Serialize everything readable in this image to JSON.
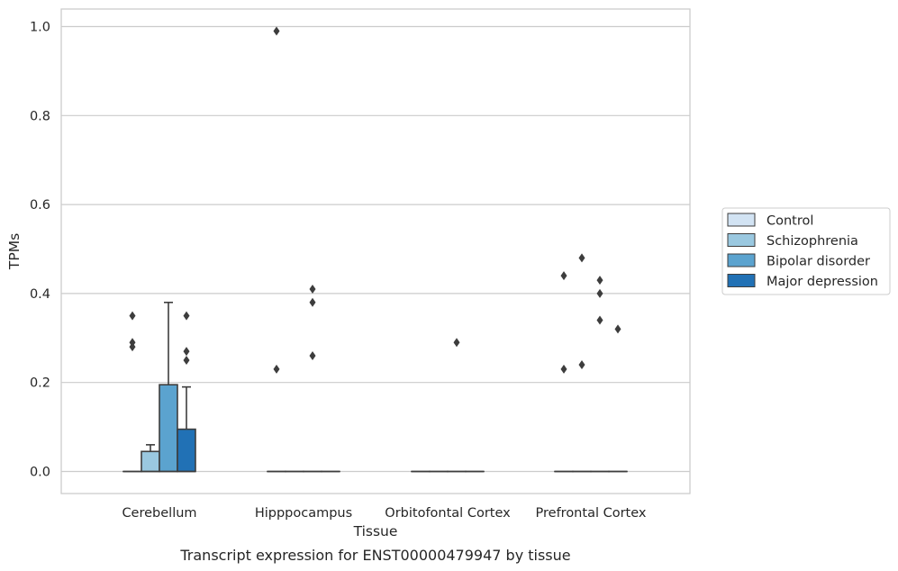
{
  "chart_data": {
    "type": "box",
    "xlabel": "Tissue",
    "ylabel": "TPMs",
    "caption": "Transcript expression for ENST00000479947 by tissue",
    "ylim": [
      -0.048,
      1.04
    ],
    "yticks": [
      0.0,
      0.2,
      0.4,
      0.6,
      0.8,
      1.0
    ],
    "ytick_labels": [
      "0.0",
      "0.2",
      "0.4",
      "0.6",
      "0.8",
      "1.0"
    ],
    "grid": true,
    "legend_position": "right",
    "categories": [
      "Cerebellum",
      "Hipppocampus",
      "Orbitofontal Cortex",
      "Prefrontal Cortex"
    ],
    "series": [
      {
        "name": "Control",
        "color": "#d2e3f3",
        "boxes": [
          {
            "q1": 0,
            "median": 0,
            "q3": 0,
            "whisker_low": 0,
            "whisker_high": 0,
            "outliers": [
              0.28,
              0.29,
              0.35
            ]
          },
          {
            "q1": 0,
            "median": 0,
            "q3": 0,
            "whisker_low": 0,
            "whisker_high": 0,
            "outliers": [
              0.23,
              0.99
            ]
          },
          {
            "q1": 0,
            "median": 0,
            "q3": 0,
            "whisker_low": 0,
            "whisker_high": 0,
            "outliers": []
          },
          {
            "q1": 0,
            "median": 0,
            "q3": 0,
            "whisker_low": 0,
            "whisker_high": 0,
            "outliers": [
              0.23,
              0.44
            ]
          }
        ]
      },
      {
        "name": "Schizophrenia",
        "color": "#9ac8e0",
        "boxes": [
          {
            "q1": 0,
            "median": 0,
            "q3": 0.045,
            "whisker_low": 0,
            "whisker_high": 0.06,
            "outliers": []
          },
          {
            "q1": 0,
            "median": 0,
            "q3": 0,
            "whisker_low": 0,
            "whisker_high": 0,
            "outliers": []
          },
          {
            "q1": 0,
            "median": 0,
            "q3": 0,
            "whisker_low": 0,
            "whisker_high": 0,
            "outliers": []
          },
          {
            "q1": 0,
            "median": 0,
            "q3": 0,
            "whisker_low": 0,
            "whisker_high": 0,
            "outliers": [
              0.24,
              0.48
            ]
          }
        ]
      },
      {
        "name": "Bipolar disorder",
        "color": "#5ba3cf",
        "boxes": [
          {
            "q1": 0,
            "median": 0,
            "q3": 0.195,
            "whisker_low": 0,
            "whisker_high": 0.38,
            "outliers": []
          },
          {
            "q1": 0,
            "median": 0,
            "q3": 0,
            "whisker_low": 0,
            "whisker_high": 0,
            "outliers": [
              0.26,
              0.38,
              0.41
            ]
          },
          {
            "q1": 0,
            "median": 0,
            "q3": 0,
            "whisker_low": 0,
            "whisker_high": 0,
            "outliers": [
              0.29
            ]
          },
          {
            "q1": 0,
            "median": 0,
            "q3": 0,
            "whisker_low": 0,
            "whisker_high": 0,
            "outliers": [
              0.34,
              0.4,
              0.43
            ]
          }
        ]
      },
      {
        "name": "Major depression",
        "color": "#2171b5",
        "boxes": [
          {
            "q1": 0,
            "median": 0,
            "q3": 0.095,
            "whisker_low": 0,
            "whisker_high": 0.19,
            "outliers": [
              0.25,
              0.27,
              0.35
            ]
          },
          {
            "q1": 0,
            "median": 0,
            "q3": 0,
            "whisker_low": 0,
            "whisker_high": 0,
            "outliers": []
          },
          {
            "q1": 0,
            "median": 0,
            "q3": 0,
            "whisker_low": 0,
            "whisker_high": 0,
            "outliers": []
          },
          {
            "q1": 0,
            "median": 0,
            "q3": 0,
            "whisker_low": 0,
            "whisker_high": 0,
            "outliers": [
              0.32
            ]
          }
        ]
      }
    ]
  }
}
